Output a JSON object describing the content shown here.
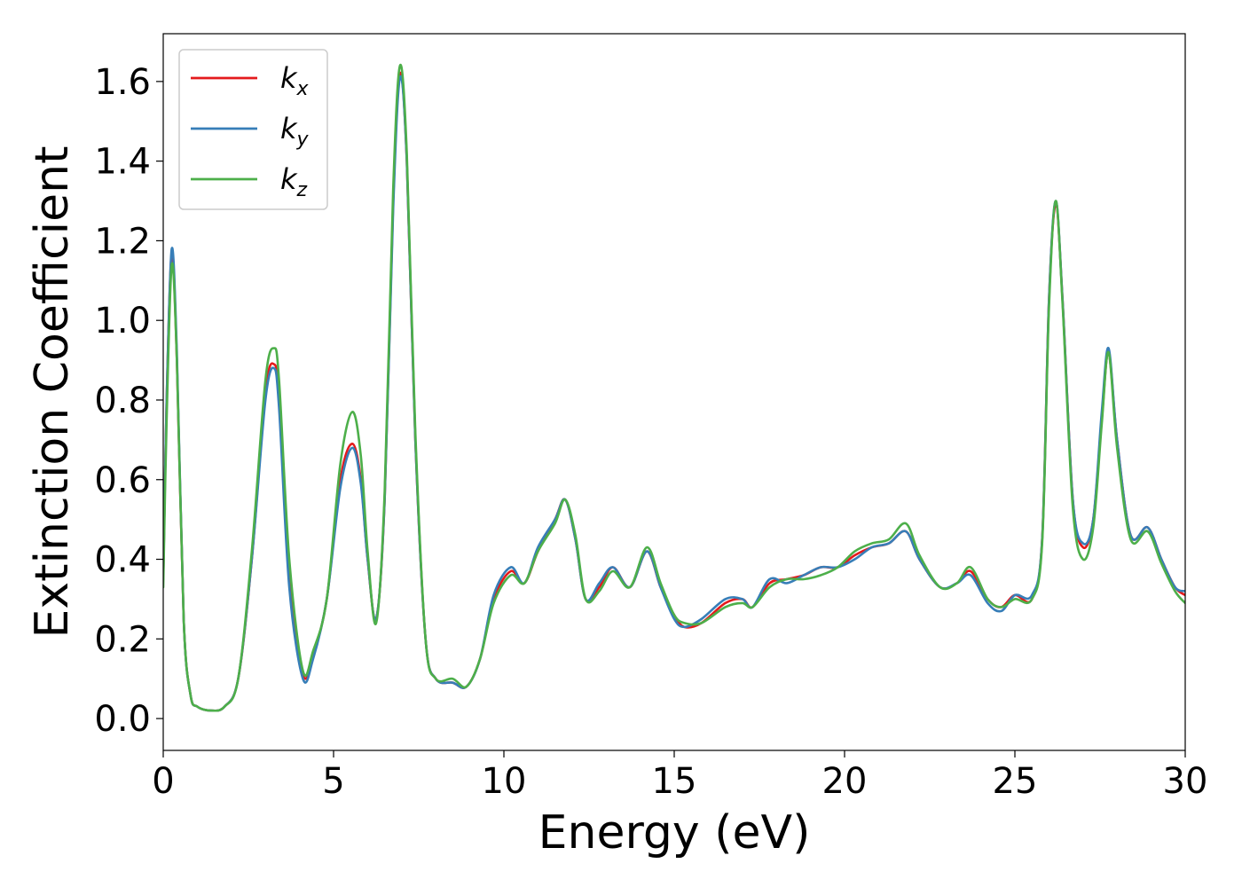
{
  "chart_data": {
    "type": "line",
    "title": "",
    "xlabel": "Energy (eV)",
    "ylabel": "Extinction Coefficient",
    "xlim": [
      0,
      30
    ],
    "ylim": [
      -0.08,
      1.72
    ],
    "xticks": [
      0,
      5,
      10,
      15,
      20,
      25,
      30
    ],
    "xtick_labels": [
      "0",
      "5",
      "10",
      "15",
      "20",
      "25",
      "30"
    ],
    "yticks": [
      0.0,
      0.2,
      0.4,
      0.6,
      0.8,
      1.0,
      1.2,
      1.4,
      1.6
    ],
    "ytick_labels": [
      "0.0",
      "0.2",
      "0.4",
      "0.6",
      "0.8",
      "1.0",
      "1.2",
      "1.4",
      "1.6"
    ],
    "grid": false,
    "legend_position": "top-left",
    "series": [
      {
        "name": "k_x",
        "legend_base": "k",
        "legend_sub": "x",
        "color": "#e41a1c",
        "points": [
          [
            0,
            0.35
          ],
          [
            0.1,
            0.8
          ],
          [
            0.25,
            1.17
          ],
          [
            0.4,
            0.9
          ],
          [
            0.6,
            0.25
          ],
          [
            0.8,
            0.06
          ],
          [
            1.0,
            0.03
          ],
          [
            1.4,
            0.02
          ],
          [
            1.8,
            0.03
          ],
          [
            2.2,
            0.1
          ],
          [
            2.6,
            0.4
          ],
          [
            3.0,
            0.82
          ],
          [
            3.25,
            0.89
          ],
          [
            3.4,
            0.8
          ],
          [
            3.7,
            0.35
          ],
          [
            4.1,
            0.11
          ],
          [
            4.4,
            0.16
          ],
          [
            4.8,
            0.3
          ],
          [
            5.2,
            0.6
          ],
          [
            5.55,
            0.69
          ],
          [
            5.8,
            0.6
          ],
          [
            6.0,
            0.4
          ],
          [
            6.25,
            0.25
          ],
          [
            6.5,
            0.55
          ],
          [
            6.75,
            1.3
          ],
          [
            6.95,
            1.62
          ],
          [
            7.15,
            1.4
          ],
          [
            7.4,
            0.7
          ],
          [
            7.7,
            0.2
          ],
          [
            8.0,
            0.1
          ],
          [
            8.5,
            0.09
          ],
          [
            8.9,
            0.08
          ],
          [
            9.3,
            0.15
          ],
          [
            9.7,
            0.3
          ],
          [
            10.2,
            0.37
          ],
          [
            10.6,
            0.34
          ],
          [
            11.0,
            0.42
          ],
          [
            11.5,
            0.5
          ],
          [
            11.8,
            0.55
          ],
          [
            12.1,
            0.45
          ],
          [
            12.4,
            0.3
          ],
          [
            12.8,
            0.33
          ],
          [
            13.2,
            0.38
          ],
          [
            13.7,
            0.33
          ],
          [
            14.2,
            0.42
          ],
          [
            14.6,
            0.33
          ],
          [
            15.0,
            0.26
          ],
          [
            15.3,
            0.23
          ],
          [
            15.8,
            0.24
          ],
          [
            16.5,
            0.29
          ],
          [
            17.0,
            0.3
          ],
          [
            17.3,
            0.28
          ],
          [
            17.8,
            0.34
          ],
          [
            18.3,
            0.35
          ],
          [
            18.8,
            0.36
          ],
          [
            19.3,
            0.38
          ],
          [
            19.8,
            0.38
          ],
          [
            20.3,
            0.41
          ],
          [
            20.8,
            0.43
          ],
          [
            21.3,
            0.44
          ],
          [
            21.8,
            0.47
          ],
          [
            22.2,
            0.4
          ],
          [
            22.8,
            0.33
          ],
          [
            23.3,
            0.34
          ],
          [
            23.7,
            0.37
          ],
          [
            24.2,
            0.3
          ],
          [
            24.6,
            0.28
          ],
          [
            25.0,
            0.31
          ],
          [
            25.5,
            0.3
          ],
          [
            25.8,
            0.45
          ],
          [
            26.0,
            1.05
          ],
          [
            26.2,
            1.29
          ],
          [
            26.4,
            1.05
          ],
          [
            26.7,
            0.55
          ],
          [
            27.0,
            0.43
          ],
          [
            27.3,
            0.5
          ],
          [
            27.55,
            0.75
          ],
          [
            27.75,
            0.92
          ],
          [
            28.0,
            0.7
          ],
          [
            28.4,
            0.46
          ],
          [
            28.9,
            0.48
          ],
          [
            29.3,
            0.4
          ],
          [
            29.7,
            0.33
          ],
          [
            30.0,
            0.31
          ]
        ]
      },
      {
        "name": "k_y",
        "legend_base": "k",
        "legend_sub": "y",
        "color": "#377eb8",
        "points": [
          [
            0,
            0.35
          ],
          [
            0.1,
            0.8
          ],
          [
            0.25,
            1.18
          ],
          [
            0.4,
            0.92
          ],
          [
            0.6,
            0.25
          ],
          [
            0.8,
            0.06
          ],
          [
            1.0,
            0.03
          ],
          [
            1.4,
            0.02
          ],
          [
            1.8,
            0.03
          ],
          [
            2.2,
            0.1
          ],
          [
            2.6,
            0.4
          ],
          [
            3.0,
            0.8
          ],
          [
            3.25,
            0.88
          ],
          [
            3.4,
            0.78
          ],
          [
            3.7,
            0.33
          ],
          [
            4.1,
            0.1
          ],
          [
            4.4,
            0.15
          ],
          [
            4.8,
            0.3
          ],
          [
            5.2,
            0.58
          ],
          [
            5.55,
            0.68
          ],
          [
            5.8,
            0.59
          ],
          [
            6.0,
            0.4
          ],
          [
            6.25,
            0.25
          ],
          [
            6.5,
            0.55
          ],
          [
            6.75,
            1.28
          ],
          [
            6.95,
            1.61
          ],
          [
            7.15,
            1.4
          ],
          [
            7.4,
            0.7
          ],
          [
            7.7,
            0.2
          ],
          [
            8.0,
            0.1
          ],
          [
            8.5,
            0.09
          ],
          [
            8.9,
            0.08
          ],
          [
            9.3,
            0.15
          ],
          [
            9.7,
            0.31
          ],
          [
            10.2,
            0.38
          ],
          [
            10.6,
            0.34
          ],
          [
            11.0,
            0.43
          ],
          [
            11.5,
            0.5
          ],
          [
            11.8,
            0.55
          ],
          [
            12.1,
            0.45
          ],
          [
            12.4,
            0.3
          ],
          [
            12.8,
            0.34
          ],
          [
            13.2,
            0.38
          ],
          [
            13.7,
            0.33
          ],
          [
            14.2,
            0.42
          ],
          [
            14.6,
            0.33
          ],
          [
            15.0,
            0.25
          ],
          [
            15.3,
            0.23
          ],
          [
            15.8,
            0.25
          ],
          [
            16.5,
            0.3
          ],
          [
            17.0,
            0.3
          ],
          [
            17.3,
            0.28
          ],
          [
            17.8,
            0.35
          ],
          [
            18.3,
            0.34
          ],
          [
            18.8,
            0.36
          ],
          [
            19.3,
            0.38
          ],
          [
            19.8,
            0.38
          ],
          [
            20.3,
            0.4
          ],
          [
            20.8,
            0.43
          ],
          [
            21.3,
            0.44
          ],
          [
            21.8,
            0.47
          ],
          [
            22.2,
            0.4
          ],
          [
            22.8,
            0.33
          ],
          [
            23.3,
            0.34
          ],
          [
            23.7,
            0.36
          ],
          [
            24.2,
            0.29
          ],
          [
            24.6,
            0.27
          ],
          [
            25.0,
            0.31
          ],
          [
            25.5,
            0.31
          ],
          [
            25.8,
            0.45
          ],
          [
            26.0,
            1.05
          ],
          [
            26.2,
            1.3
          ],
          [
            26.4,
            1.05
          ],
          [
            26.7,
            0.55
          ],
          [
            27.0,
            0.44
          ],
          [
            27.3,
            0.5
          ],
          [
            27.55,
            0.77
          ],
          [
            27.75,
            0.93
          ],
          [
            28.0,
            0.7
          ],
          [
            28.4,
            0.46
          ],
          [
            28.9,
            0.48
          ],
          [
            29.3,
            0.4
          ],
          [
            29.7,
            0.33
          ],
          [
            30.0,
            0.32
          ]
        ]
      },
      {
        "name": "k_z",
        "legend_base": "k",
        "legend_sub": "z",
        "color": "#4daf4a",
        "points": [
          [
            0,
            0.33
          ],
          [
            0.1,
            0.75
          ],
          [
            0.25,
            1.14
          ],
          [
            0.4,
            0.9
          ],
          [
            0.6,
            0.25
          ],
          [
            0.8,
            0.06
          ],
          [
            1.0,
            0.03
          ],
          [
            1.4,
            0.02
          ],
          [
            1.8,
            0.03
          ],
          [
            2.2,
            0.1
          ],
          [
            2.6,
            0.42
          ],
          [
            3.0,
            0.85
          ],
          [
            3.25,
            0.93
          ],
          [
            3.4,
            0.85
          ],
          [
            3.7,
            0.4
          ],
          [
            4.1,
            0.12
          ],
          [
            4.4,
            0.17
          ],
          [
            4.8,
            0.3
          ],
          [
            5.2,
            0.64
          ],
          [
            5.55,
            0.77
          ],
          [
            5.8,
            0.66
          ],
          [
            6.0,
            0.42
          ],
          [
            6.25,
            0.24
          ],
          [
            6.5,
            0.57
          ],
          [
            6.75,
            1.33
          ],
          [
            6.95,
            1.64
          ],
          [
            7.15,
            1.42
          ],
          [
            7.4,
            0.72
          ],
          [
            7.7,
            0.2
          ],
          [
            8.0,
            0.1
          ],
          [
            8.5,
            0.1
          ],
          [
            8.9,
            0.08
          ],
          [
            9.3,
            0.15
          ],
          [
            9.7,
            0.29
          ],
          [
            10.2,
            0.36
          ],
          [
            10.6,
            0.34
          ],
          [
            11.0,
            0.42
          ],
          [
            11.5,
            0.49
          ],
          [
            11.8,
            0.55
          ],
          [
            12.1,
            0.46
          ],
          [
            12.4,
            0.3
          ],
          [
            12.8,
            0.32
          ],
          [
            13.2,
            0.37
          ],
          [
            13.7,
            0.33
          ],
          [
            14.2,
            0.43
          ],
          [
            14.6,
            0.34
          ],
          [
            15.0,
            0.26
          ],
          [
            15.3,
            0.24
          ],
          [
            15.8,
            0.24
          ],
          [
            16.5,
            0.28
          ],
          [
            17.0,
            0.29
          ],
          [
            17.3,
            0.28
          ],
          [
            17.8,
            0.33
          ],
          [
            18.3,
            0.35
          ],
          [
            18.8,
            0.35
          ],
          [
            19.3,
            0.36
          ],
          [
            19.8,
            0.38
          ],
          [
            20.3,
            0.42
          ],
          [
            20.8,
            0.44
          ],
          [
            21.3,
            0.45
          ],
          [
            21.8,
            0.49
          ],
          [
            22.2,
            0.41
          ],
          [
            22.8,
            0.33
          ],
          [
            23.3,
            0.34
          ],
          [
            23.7,
            0.38
          ],
          [
            24.2,
            0.3
          ],
          [
            24.6,
            0.28
          ],
          [
            25.0,
            0.3
          ],
          [
            25.5,
            0.3
          ],
          [
            25.8,
            0.44
          ],
          [
            26.0,
            1.03
          ],
          [
            26.2,
            1.3
          ],
          [
            26.4,
            1.04
          ],
          [
            26.7,
            0.53
          ],
          [
            27.0,
            0.4
          ],
          [
            27.3,
            0.48
          ],
          [
            27.55,
            0.74
          ],
          [
            27.75,
            0.92
          ],
          [
            28.0,
            0.68
          ],
          [
            28.4,
            0.45
          ],
          [
            28.9,
            0.47
          ],
          [
            29.3,
            0.39
          ],
          [
            29.7,
            0.32
          ],
          [
            30.0,
            0.29
          ]
        ]
      }
    ]
  }
}
